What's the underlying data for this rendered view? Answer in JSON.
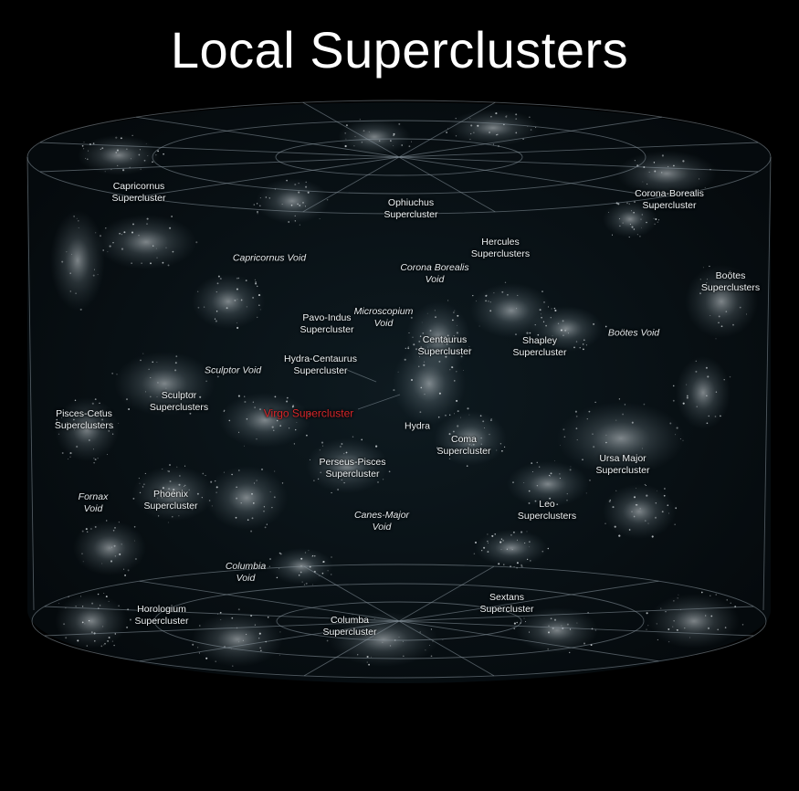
{
  "title": "Local Superclusters",
  "colors": {
    "background": "#000000",
    "highlight": "#d8262a",
    "label": "#eef3f5",
    "grid": "#8a97a0"
  },
  "labels": [
    {
      "id": "capricornus-supercluster",
      "lines": [
        "Capricornus",
        "Supercluster"
      ],
      "kind": "cluster"
    },
    {
      "id": "ophiuchus-supercluster",
      "lines": [
        "Ophiuchus",
        "Supercluster"
      ],
      "kind": "cluster"
    },
    {
      "id": "corona-borealis-supercluster",
      "lines": [
        "Corona-Borealis",
        "Supercluster"
      ],
      "kind": "cluster"
    },
    {
      "id": "hercules-superclusters",
      "lines": [
        "Hercules",
        "Superclusters"
      ],
      "kind": "cluster"
    },
    {
      "id": "capricornus-void",
      "lines": [
        "Capricornus Void"
      ],
      "kind": "void"
    },
    {
      "id": "corona-borealis-void",
      "lines": [
        "Corona Borealis",
        "Void"
      ],
      "kind": "void"
    },
    {
      "id": "bootes-superclusters",
      "lines": [
        "Boötes",
        "Superclusters"
      ],
      "kind": "cluster"
    },
    {
      "id": "pavo-indus-supercluster",
      "lines": [
        "Pavo-Indus",
        "Supercluster"
      ],
      "kind": "cluster"
    },
    {
      "id": "microscopium-void",
      "lines": [
        "Microscopium",
        "Void"
      ],
      "kind": "void"
    },
    {
      "id": "centaurus-supercluster",
      "lines": [
        "Centaurus",
        "Supercluster"
      ],
      "kind": "cluster"
    },
    {
      "id": "shapley-supercluster",
      "lines": [
        "Shapley",
        "Supercluster"
      ],
      "kind": "cluster"
    },
    {
      "id": "bootes-void",
      "lines": [
        "Boötes Void"
      ],
      "kind": "void"
    },
    {
      "id": "hydra-centaurus-supercluster",
      "lines": [
        "Hydra-Centaurus",
        "Supercluster"
      ],
      "kind": "cluster"
    },
    {
      "id": "sculptor-void",
      "lines": [
        "Sculptor Void"
      ],
      "kind": "void"
    },
    {
      "id": "sculptor-superclusters",
      "lines": [
        "Sculptor",
        "Superclusters"
      ],
      "kind": "cluster"
    },
    {
      "id": "pisces-cetus-superclusters",
      "lines": [
        "Pisces-Cetus",
        "Superclusters"
      ],
      "kind": "cluster"
    },
    {
      "id": "virgo-supercluster",
      "lines": [
        "Virgo Supercluster"
      ],
      "kind": "highlight"
    },
    {
      "id": "hydra",
      "lines": [
        "Hydra"
      ],
      "kind": "cluster"
    },
    {
      "id": "coma-supercluster",
      "lines": [
        "Coma",
        "Supercluster"
      ],
      "kind": "cluster"
    },
    {
      "id": "perseus-pisces-supercluster",
      "lines": [
        "Perseus-Pisces",
        "Supercluster"
      ],
      "kind": "cluster"
    },
    {
      "id": "ursa-major-supercluster",
      "lines": [
        "Ursa Major",
        "Supercluster"
      ],
      "kind": "cluster"
    },
    {
      "id": "fornax-void",
      "lines": [
        "Fornax",
        "Void"
      ],
      "kind": "void"
    },
    {
      "id": "phoenix-supercluster",
      "lines": [
        "Phoenix",
        "Supercluster"
      ],
      "kind": "cluster"
    },
    {
      "id": "canes-major-void",
      "lines": [
        "Canes-Major",
        "Void"
      ],
      "kind": "void"
    },
    {
      "id": "leo-superclusters",
      "lines": [
        "Leo",
        "Superclusters"
      ],
      "kind": "cluster"
    },
    {
      "id": "columbia-void",
      "lines": [
        "Columbia",
        "Void"
      ],
      "kind": "void"
    },
    {
      "id": "horologium-supercluster",
      "lines": [
        "Horologium",
        "Supercluster"
      ],
      "kind": "cluster"
    },
    {
      "id": "columba-supercluster",
      "lines": [
        "Columba",
        "Supercluster"
      ],
      "kind": "cluster"
    },
    {
      "id": "sextans-supercluster",
      "lines": [
        "Sextans",
        "Supercluster"
      ],
      "kind": "cluster"
    }
  ]
}
